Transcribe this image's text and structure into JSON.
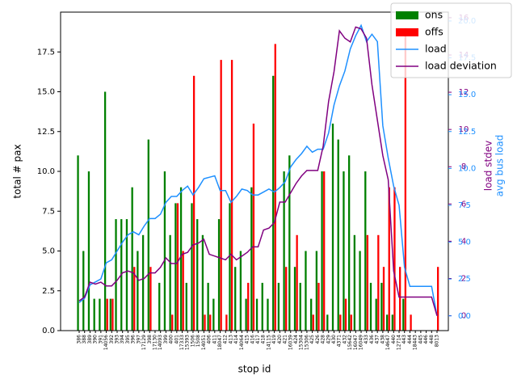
{
  "chart_data": {
    "type": "bar_line",
    "xlabel": "stop id",
    "ylabel": "total # pax",
    "y2label": "avg bus load",
    "y3label": "load stdev",
    "categories": [
      "386",
      "388",
      "389",
      "390",
      "391",
      "14056",
      "392",
      "393",
      "394",
      "395",
      "396",
      "397",
      "17129",
      "398",
      "17130",
      "14093",
      "399",
      "400",
      "401",
      "17333",
      "15393",
      "1506",
      "1508",
      "14051",
      "406",
      "411",
      "18047",
      "412",
      "413",
      "414",
      "14064",
      "415",
      "416",
      "417",
      "418",
      "14115",
      "419",
      "420",
      "421",
      "16039",
      "424",
      "15304",
      "15306",
      "425",
      "426",
      "428",
      "429",
      "430",
      "4371",
      "432",
      "15642",
      "16047",
      "16049",
      "433",
      "436",
      "437",
      "438",
      "14647",
      "440",
      "12714",
      "443",
      "444",
      "18443",
      "445",
      "446",
      "448",
      "8013"
    ],
    "series": [
      {
        "name": "ons",
        "color": "#008000",
        "kind": "bar",
        "axis": "y",
        "values": [
          11,
          5,
          10,
          2,
          2,
          15,
          2,
          7,
          7,
          7,
          9,
          5,
          6,
          12,
          0,
          3,
          10,
          6,
          8,
          9,
          3,
          8,
          7,
          6,
          3,
          2,
          7,
          0,
          8,
          4,
          5,
          2,
          9,
          2,
          3,
          2,
          16,
          3,
          10,
          11,
          4,
          3,
          5,
          2,
          5,
          10,
          1,
          13,
          12,
          10,
          11,
          6,
          5,
          10,
          3,
          2,
          3,
          1,
          1,
          0,
          2,
          0,
          0,
          0,
          0,
          0,
          0
        ]
      },
      {
        "name": "offs",
        "color": "#ff0000",
        "kind": "bar",
        "axis": "y",
        "values": [
          0,
          0,
          0,
          0,
          0,
          2,
          2,
          0,
          0,
          0,
          4,
          0,
          0,
          4,
          0,
          0,
          0,
          1,
          8,
          5,
          0,
          16,
          0,
          1,
          1,
          0,
          17,
          1,
          17,
          0,
          0,
          3,
          13,
          0,
          0,
          0,
          18,
          0,
          4,
          0,
          6,
          0,
          0,
          1,
          3,
          10,
          0,
          0,
          1,
          2,
          1,
          0,
          0,
          6,
          0,
          6,
          4,
          9,
          9,
          4,
          19,
          1,
          0,
          0,
          0,
          0,
          4
        ]
      },
      {
        "name": "load",
        "color": "#1e90ff",
        "kind": "line",
        "axis": "y2",
        "values": [
          0.9,
          1.2,
          2.1,
          2.3,
          2.5,
          3.6,
          3.8,
          4.4,
          5.0,
          5.5,
          5.7,
          5.5,
          6.1,
          6.6,
          6.6,
          6.9,
          7.7,
          8.1,
          8.1,
          8.5,
          8.8,
          8.2,
          8.7,
          9.3,
          9.4,
          9.5,
          8.5,
          8.5,
          7.7,
          8.1,
          8.6,
          8.5,
          8.2,
          8.2,
          8.4,
          8.6,
          8.4,
          8.7,
          9.1,
          10.1,
          10.6,
          11.0,
          11.5,
          11.1,
          11.3,
          11.3,
          12.4,
          14.3,
          15.6,
          16.6,
          18.1,
          19.0,
          19.7,
          18.6,
          19.1,
          18.6,
          12.9,
          10.7,
          8.8,
          7.5,
          3.3,
          2.0,
          2.0,
          2.0,
          2.0,
          2.0,
          0
        ]
      },
      {
        "name": "load deviation",
        "color": "#800080",
        "kind": "line",
        "axis": "y3",
        "values": [
          0.8,
          1.0,
          1.8,
          1.7,
          1.8,
          1.6,
          1.6,
          1.9,
          2.3,
          2.4,
          2.3,
          1.9,
          2.0,
          2.3,
          2.3,
          2.6,
          3.1,
          2.8,
          2.8,
          3.3,
          3.4,
          3.8,
          3.9,
          4.1,
          3.3,
          3.2,
          3.1,
          3.0,
          3.3,
          3.0,
          3.2,
          3.4,
          3.7,
          3.7,
          4.6,
          4.7,
          5.0,
          6.1,
          6.1,
          6.6,
          7.1,
          7.5,
          7.8,
          7.8,
          7.8,
          9.1,
          11.5,
          13.1,
          15.3,
          14.9,
          14.7,
          15.5,
          15.4,
          14.9,
          12.4,
          10.5,
          8.6,
          7.3,
          2.4,
          1.0,
          1.0,
          1.0,
          1.0,
          1.0,
          1.0,
          1.0,
          0
        ]
      }
    ],
    "ylim": [
      0,
      20
    ],
    "yticks": [
      {
        "value": 0,
        "label": "0.0"
      },
      2.5,
      {
        "value": 5,
        "label": "5.0"
      },
      7.5,
      {
        "value": 10,
        "label": "10.0"
      },
      12.5,
      {
        "value": 15,
        "label": "15.0"
      },
      17.5
    ],
    "y2lim": [
      -1.0,
      20.6
    ],
    "y2ticks": [
      {
        "value": 0,
        "label": "0.0"
      },
      2.5,
      {
        "value": 5,
        "label": "5.0"
      },
      7.5,
      {
        "value": 10,
        "label": "10.0"
      },
      12.5,
      {
        "value": 15,
        "label": "15.0"
      },
      17.5,
      {
        "value": 20,
        "label": "20.0"
      }
    ],
    "y3lim": [
      -0.8,
      16.3
    ],
    "y3ticks": [
      0,
      2,
      4,
      6,
      8,
      10,
      12,
      14,
      16
    ],
    "legend": "upper right"
  }
}
